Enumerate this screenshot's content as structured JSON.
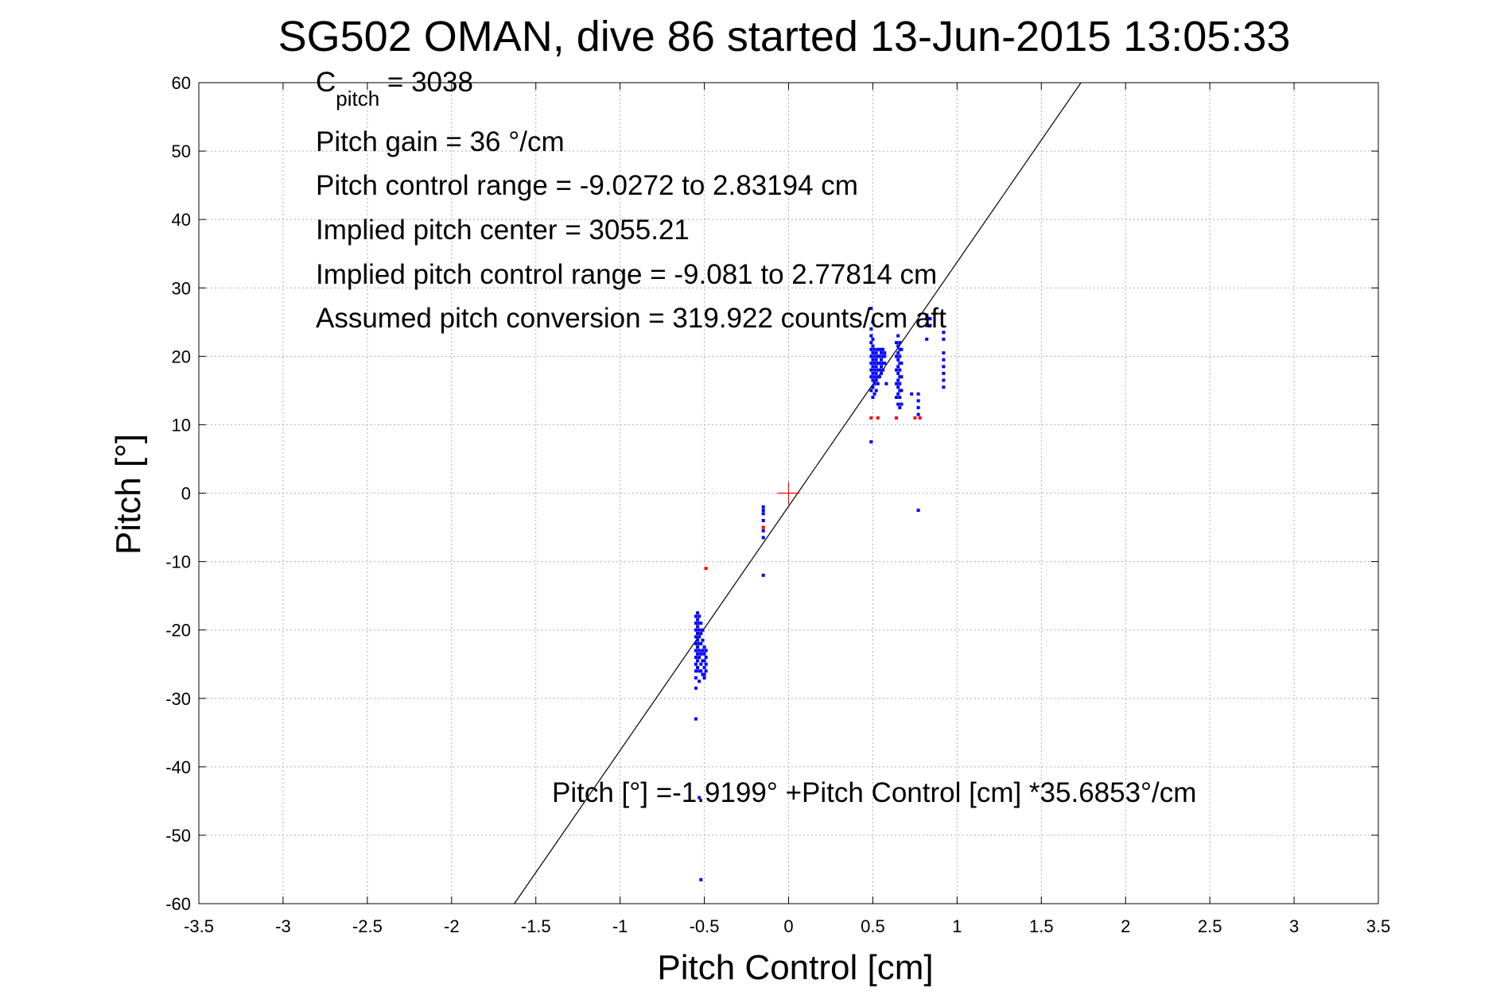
{
  "chart_data": {
    "type": "scatter",
    "title": "SG502 OMAN, dive 86 started 13-Jun-2015 13:05:33",
    "xlabel": "Pitch Control [cm]",
    "ylabel": "Pitch [°]",
    "xlim": [
      -3.5,
      3.5
    ],
    "ylim": [
      -60,
      60
    ],
    "xticks": [
      -3.5,
      -3,
      -2.5,
      -2,
      -1.5,
      -1,
      -0.5,
      0,
      0.5,
      1,
      1.5,
      2,
      2.5,
      3,
      3.5
    ],
    "xtick_labels": [
      "-3.5",
      "-3",
      "-2.5",
      "-2",
      "-1.5",
      "-1",
      "-0.5",
      "0",
      "0.5",
      "1",
      "1.5",
      "2",
      "2.5",
      "3",
      "3.5"
    ],
    "yticks": [
      -60,
      -50,
      -40,
      -30,
      -20,
      -10,
      0,
      10,
      20,
      30,
      40,
      50,
      60
    ],
    "ytick_labels": [
      "-60",
      "-50",
      "-40",
      "-30",
      "-20",
      "-10",
      "0",
      "10",
      "20",
      "30",
      "40",
      "50",
      "60"
    ],
    "grid": true,
    "annotations": {
      "cpitch_main": "C",
      "cpitch_sub": "pitch",
      "cpitch_value": " = 3038",
      "pitch_gain": "Pitch gain = 36 °/cm",
      "control_range": "Pitch control range = -9.0272 to 2.83194 cm",
      "implied_center": "Implied pitch center = 3055.21",
      "implied_range": "Implied pitch control range = -9.081 to 2.77814 cm",
      "conversion": "Assumed pitch conversion = 319.922 counts/cm aft",
      "fit_equation": "Pitch [°] =-1.9199° +Pitch Control [cm] *35.6853°/cm"
    },
    "fit_line": {
      "intercept": -1.9199,
      "slope": 35.6853,
      "color": "#000000"
    },
    "center_marker": {
      "x": 0,
      "y": 0,
      "color": "#ff0000"
    },
    "series": [
      {
        "name": "blue",
        "color": "#0000ff",
        "points": [
          [
            -0.55,
            -18
          ],
          [
            -0.55,
            -19
          ],
          [
            -0.55,
            -20
          ],
          [
            -0.55,
            -21
          ],
          [
            -0.55,
            -22
          ],
          [
            -0.55,
            -23
          ],
          [
            -0.55,
            -24
          ],
          [
            -0.55,
            -25
          ],
          [
            -0.55,
            -26
          ],
          [
            -0.55,
            -27
          ],
          [
            -0.55,
            -28.5
          ],
          [
            -0.55,
            -33
          ],
          [
            -0.54,
            -17.5
          ],
          [
            -0.54,
            -18.5
          ],
          [
            -0.54,
            -19.5
          ],
          [
            -0.54,
            -20.5
          ],
          [
            -0.54,
            -21.5
          ],
          [
            -0.54,
            -22.5
          ],
          [
            -0.54,
            -23.5
          ],
          [
            -0.54,
            -24.5
          ],
          [
            -0.54,
            -25.5
          ],
          [
            -0.53,
            -18
          ],
          [
            -0.53,
            -19
          ],
          [
            -0.53,
            -20
          ],
          [
            -0.53,
            -21
          ],
          [
            -0.53,
            -22
          ],
          [
            -0.53,
            -23
          ],
          [
            -0.53,
            -24
          ],
          [
            -0.53,
            -26
          ],
          [
            -0.53,
            -27.5
          ],
          [
            -0.52,
            -19
          ],
          [
            -0.52,
            -20.5
          ],
          [
            -0.52,
            -22
          ],
          [
            -0.52,
            -23.5
          ],
          [
            -0.52,
            -25
          ],
          [
            -0.52,
            -26
          ],
          [
            -0.51,
            -20
          ],
          [
            -0.51,
            -21.5
          ],
          [
            -0.51,
            -23
          ],
          [
            -0.51,
            -24.5
          ],
          [
            -0.51,
            -26.5
          ],
          [
            -0.5,
            -22.5
          ],
          [
            -0.5,
            -23.5
          ],
          [
            -0.5,
            -24.5
          ],
          [
            -0.5,
            -25.5
          ],
          [
            -0.5,
            -26.5
          ],
          [
            -0.5,
            -27
          ],
          [
            -0.49,
            -23
          ],
          [
            -0.49,
            -24
          ],
          [
            -0.49,
            -25
          ],
          [
            -0.49,
            -26
          ],
          [
            -0.53,
            -44.5
          ],
          [
            -0.52,
            -56.5
          ],
          [
            -0.15,
            -2
          ],
          [
            -0.15,
            -2.5
          ],
          [
            -0.15,
            -3
          ],
          [
            -0.15,
            -4
          ],
          [
            -0.15,
            -5.5
          ],
          [
            -0.15,
            -6.5
          ],
          [
            -0.15,
            -12
          ],
          [
            0.49,
            7.5
          ],
          [
            0.49,
            15
          ],
          [
            0.49,
            17
          ],
          [
            0.49,
            18
          ],
          [
            0.49,
            19
          ],
          [
            0.49,
            20
          ],
          [
            0.49,
            21
          ],
          [
            0.49,
            22
          ],
          [
            0.49,
            23
          ],
          [
            0.49,
            24
          ],
          [
            0.49,
            27
          ],
          [
            0.5,
            14
          ],
          [
            0.5,
            15.5
          ],
          [
            0.5,
            16.5
          ],
          [
            0.5,
            17.5
          ],
          [
            0.5,
            18.5
          ],
          [
            0.5,
            19.5
          ],
          [
            0.5,
            20.5
          ],
          [
            0.5,
            21.5
          ],
          [
            0.5,
            22.5
          ],
          [
            0.5,
            25
          ],
          [
            0.51,
            14.5
          ],
          [
            0.51,
            16
          ],
          [
            0.51,
            17
          ],
          [
            0.51,
            18
          ],
          [
            0.51,
            19
          ],
          [
            0.51,
            20
          ],
          [
            0.51,
            21
          ],
          [
            0.52,
            15
          ],
          [
            0.52,
            16.5
          ],
          [
            0.52,
            17.5
          ],
          [
            0.52,
            18.5
          ],
          [
            0.52,
            19.5
          ],
          [
            0.52,
            20.5
          ],
          [
            0.53,
            16
          ],
          [
            0.53,
            17
          ],
          [
            0.53,
            18
          ],
          [
            0.53,
            19
          ],
          [
            0.53,
            20
          ],
          [
            0.53,
            21
          ],
          [
            0.54,
            17
          ],
          [
            0.54,
            18
          ],
          [
            0.54,
            19
          ],
          [
            0.54,
            20
          ],
          [
            0.54,
            21
          ],
          [
            0.55,
            17.5
          ],
          [
            0.55,
            18.5
          ],
          [
            0.55,
            19.5
          ],
          [
            0.55,
            20.5
          ],
          [
            0.55,
            21
          ],
          [
            0.56,
            18
          ],
          [
            0.56,
            19
          ],
          [
            0.56,
            20
          ],
          [
            0.56,
            21
          ],
          [
            0.57,
            19
          ],
          [
            0.57,
            20
          ],
          [
            0.57,
            20.5
          ],
          [
            0.58,
            16
          ],
          [
            0.64,
            14
          ],
          [
            0.64,
            16
          ],
          [
            0.64,
            18
          ],
          [
            0.64,
            20
          ],
          [
            0.64,
            22
          ],
          [
            0.65,
            13
          ],
          [
            0.65,
            14.5
          ],
          [
            0.65,
            15.5
          ],
          [
            0.65,
            16.5
          ],
          [
            0.65,
            17.5
          ],
          [
            0.65,
            18.5
          ],
          [
            0.65,
            19.5
          ],
          [
            0.65,
            20.5
          ],
          [
            0.65,
            21.5
          ],
          [
            0.65,
            23
          ],
          [
            0.66,
            12.5
          ],
          [
            0.66,
            14
          ],
          [
            0.66,
            15
          ],
          [
            0.66,
            16
          ],
          [
            0.66,
            17
          ],
          [
            0.66,
            18
          ],
          [
            0.66,
            19
          ],
          [
            0.66,
            20
          ],
          [
            0.66,
            21
          ],
          [
            0.66,
            22
          ],
          [
            0.67,
            13
          ],
          [
            0.67,
            15
          ],
          [
            0.67,
            17
          ],
          [
            0.67,
            19
          ],
          [
            0.67,
            21
          ],
          [
            0.73,
            14.5
          ],
          [
            0.77,
            11.5
          ],
          [
            0.77,
            12.5
          ],
          [
            0.77,
            13.5
          ],
          [
            0.77,
            14.5
          ],
          [
            0.77,
            -2.5
          ],
          [
            0.82,
            22.5
          ],
          [
            0.82,
            24.5
          ],
          [
            0.82,
            25.5
          ],
          [
            0.82,
            26
          ],
          [
            0.84,
            24.5
          ],
          [
            0.84,
            25.5
          ],
          [
            0.92,
            15.5
          ],
          [
            0.92,
            16.5
          ],
          [
            0.92,
            17.5
          ],
          [
            0.92,
            18.5
          ],
          [
            0.92,
            19.5
          ],
          [
            0.92,
            20.5
          ],
          [
            0.92,
            22.5
          ],
          [
            0.92,
            23.5
          ]
        ]
      },
      {
        "name": "red",
        "color": "#ff0000",
        "points": [
          [
            -0.49,
            -11
          ],
          [
            -0.15,
            -5
          ],
          [
            0.49,
            11
          ],
          [
            0.53,
            11
          ],
          [
            0.64,
            11
          ],
          [
            0.75,
            11
          ],
          [
            0.78,
            11
          ]
        ]
      }
    ]
  }
}
